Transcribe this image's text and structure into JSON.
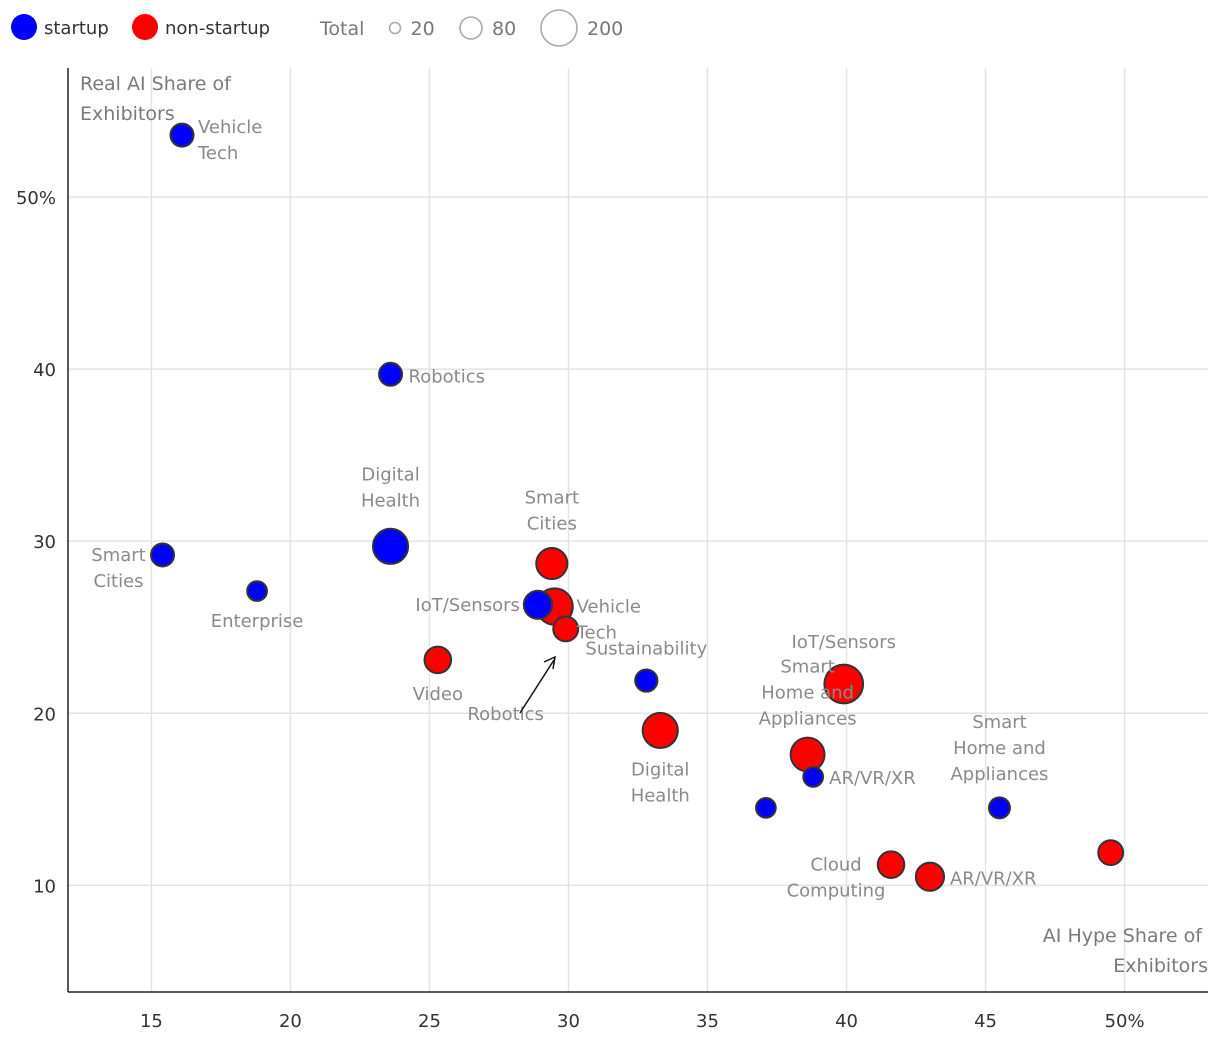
{
  "chart_data": {
    "type": "scatter",
    "xlabel": "AI Hype Share of Exhibitors",
    "ylabel": "Real AI Share of Exhibitors",
    "xlim": [
      12,
      53
    ],
    "ylim": [
      3.8,
      57.5
    ],
    "x_ticks": [
      {
        "value": 15,
        "label": "15"
      },
      {
        "value": 20,
        "label": "20"
      },
      {
        "value": 25,
        "label": "25"
      },
      {
        "value": 30,
        "label": "30"
      },
      {
        "value": 35,
        "label": "35"
      },
      {
        "value": 40,
        "label": "40"
      },
      {
        "value": 45,
        "label": "45"
      },
      {
        "value": 50,
        "label": "50%"
      }
    ],
    "y_ticks": [
      {
        "value": 10,
        "label": "10"
      },
      {
        "value": 20,
        "label": "20"
      },
      {
        "value": 30,
        "label": "30"
      },
      {
        "value": 40,
        "label": "40"
      },
      {
        "value": 50,
        "label": "50%"
      }
    ],
    "grid": true,
    "legend": {
      "placement": "top-left",
      "series_items": [
        {
          "name": "startup",
          "color": "#0000ff"
        },
        {
          "name": "non-startup",
          "color": "#ff0000"
        }
      ],
      "size_title": "Total",
      "size_items": [
        {
          "value": 20,
          "label": "20"
        },
        {
          "value": 80,
          "label": "80"
        },
        {
          "value": 200,
          "label": "200"
        }
      ]
    },
    "series": [
      {
        "name": "startup",
        "color": "#0000ff",
        "points": [
          {
            "x": 16.1,
            "y": 53.6,
            "total": 30,
            "label": "Vehicle Tech"
          },
          {
            "x": 23.6,
            "y": 39.7,
            "total": 30,
            "label": "Robotics"
          },
          {
            "x": 23.6,
            "y": 29.7,
            "total": 70,
            "label": "Digital Health"
          },
          {
            "x": 15.4,
            "y": 29.2,
            "total": 30,
            "label": "Smart Cities"
          },
          {
            "x": 18.8,
            "y": 27.1,
            "total": 22,
            "label": "Enterprise"
          },
          {
            "x": 28.9,
            "y": 26.3,
            "total": 45,
            "label": "IoT/Sensors"
          },
          {
            "x": 32.8,
            "y": 21.9,
            "total": 28,
            "label": "Sustainability"
          },
          {
            "x": 38.8,
            "y": 16.3,
            "total": 22,
            "label": "AR/VR/XR"
          },
          {
            "x": 37.1,
            "y": 14.5,
            "total": 22,
            "label": ""
          },
          {
            "x": 45.5,
            "y": 14.5,
            "total": 25,
            "label": "Smart Home and Appliances"
          }
        ]
      },
      {
        "name": "non-startup",
        "color": "#ff0000",
        "points": [
          {
            "x": 29.4,
            "y": 28.7,
            "total": 55,
            "label": "Smart Cities"
          },
          {
            "x": 29.9,
            "y": 24.9,
            "total": 35,
            "label": "Robotics"
          },
          {
            "x": 29.5,
            "y": 26.2,
            "total": 75,
            "label": "Vehicle Tech"
          },
          {
            "x": 25.3,
            "y": 23.1,
            "total": 40,
            "label": "Video"
          },
          {
            "x": 33.3,
            "y": 19.0,
            "total": 70,
            "label": "Digital Health"
          },
          {
            "x": 39.9,
            "y": 21.7,
            "total": 85,
            "label": "IoT/Sensors"
          },
          {
            "x": 38.6,
            "y": 17.6,
            "total": 65,
            "label": "Smart Home and Appliances"
          },
          {
            "x": 41.6,
            "y": 11.2,
            "total": 40,
            "label": "Cloud Computing"
          },
          {
            "x": 43.0,
            "y": 10.5,
            "total": 45,
            "label": "AR/VR/XR"
          },
          {
            "x": 49.5,
            "y": 11.9,
            "total": 35,
            "label": ""
          }
        ]
      }
    ]
  }
}
